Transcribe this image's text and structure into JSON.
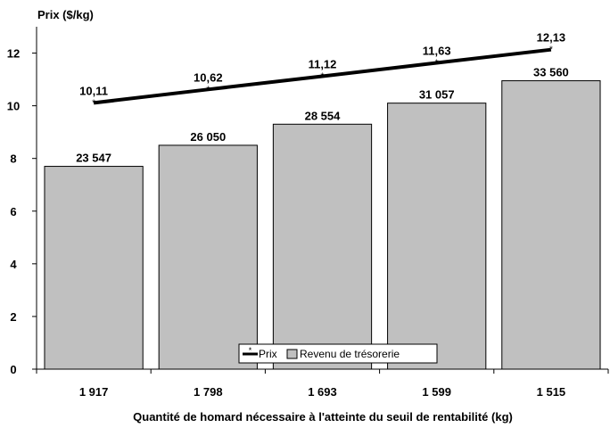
{
  "chart_data": {
    "type": "bar",
    "title": "",
    "ylabel": "Prix ($/kg)",
    "xlabel": "Quantité de homard nécessaire à l'atteinte du seuil de rentabilité (kg)",
    "categories": [
      "1 917",
      "1 798",
      "1 693",
      "1 599",
      "1 515"
    ],
    "ylim": [
      0,
      13
    ],
    "yticks": [
      0,
      2,
      4,
      6,
      8,
      10,
      12
    ],
    "grid": false,
    "legend_position": "bottom-center",
    "series": [
      {
        "name": "Revenu de trésorerie",
        "type": "bar",
        "values": [
          7.7,
          8.5,
          9.3,
          10.1,
          10.95
        ],
        "data_labels": [
          "23 547",
          "26 050",
          "28 554",
          "31 057",
          "33 560"
        ],
        "color": "#c0c0c0"
      },
      {
        "name": "Prix",
        "type": "line",
        "values": [
          10.11,
          10.62,
          11.12,
          11.63,
          12.13
        ],
        "data_labels": [
          "10,11",
          "10,62",
          "11,12",
          "11,63",
          "12,13"
        ],
        "color": "#000000"
      }
    ]
  }
}
